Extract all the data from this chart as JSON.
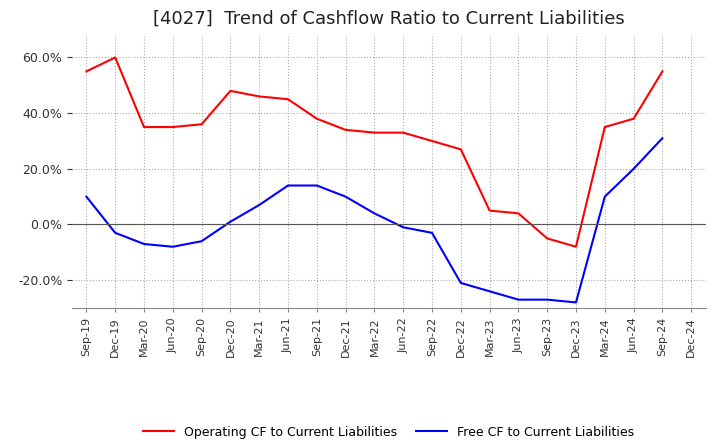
{
  "title": "[4027]  Trend of Cashflow Ratio to Current Liabilities",
  "x_labels": [
    "Sep-19",
    "Dec-19",
    "Mar-20",
    "Jun-20",
    "Sep-20",
    "Dec-20",
    "Mar-21",
    "Jun-21",
    "Sep-21",
    "Dec-21",
    "Mar-22",
    "Jun-22",
    "Sep-22",
    "Dec-22",
    "Mar-23",
    "Jun-23",
    "Sep-23",
    "Dec-23",
    "Mar-24",
    "Jun-24",
    "Sep-24",
    "Dec-24"
  ],
  "operating_cf": [
    0.55,
    0.6,
    0.35,
    0.35,
    0.36,
    0.48,
    0.46,
    0.45,
    0.38,
    0.34,
    0.33,
    0.33,
    0.3,
    0.27,
    0.05,
    0.04,
    -0.05,
    -0.08,
    0.35,
    0.38,
    0.55,
    null
  ],
  "free_cf": [
    0.1,
    -0.03,
    -0.07,
    -0.08,
    -0.06,
    0.01,
    0.07,
    0.14,
    0.14,
    0.1,
    0.04,
    -0.01,
    -0.03,
    -0.21,
    -0.24,
    -0.27,
    -0.27,
    -0.28,
    0.1,
    0.2,
    0.31,
    null
  ],
  "operating_color": "#ff0000",
  "free_color": "#0000ff",
  "ylim": [
    -0.3,
    0.68
  ],
  "yticks": [
    -0.2,
    0.0,
    0.2,
    0.4,
    0.6
  ],
  "background_color": "#ffffff",
  "grid_color": "#aaaaaa",
  "title_fontsize": 13,
  "legend_labels": [
    "Operating CF to Current Liabilities",
    "Free CF to Current Liabilities"
  ]
}
